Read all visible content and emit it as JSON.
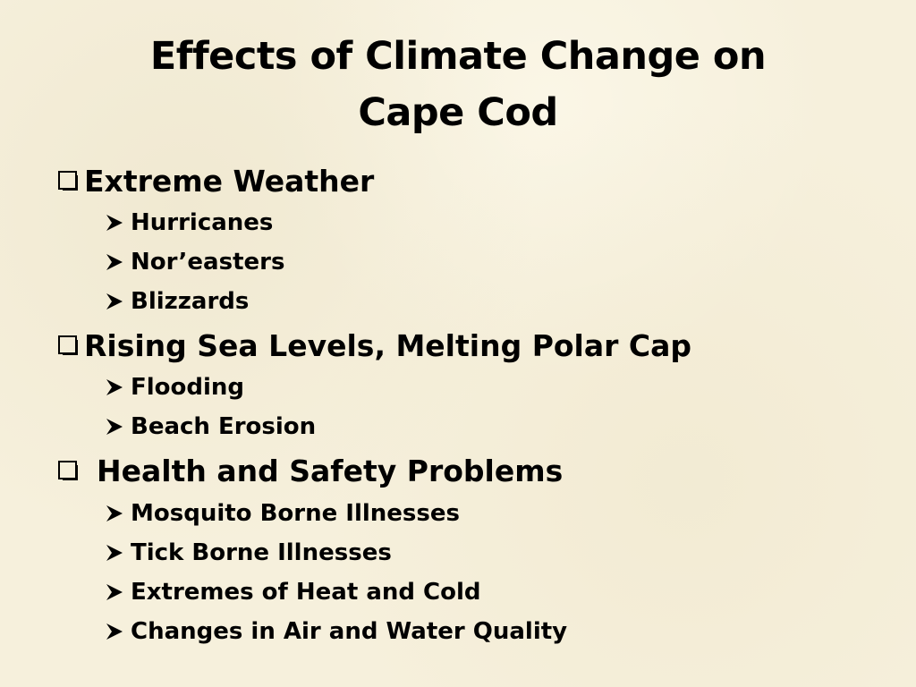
{
  "slide": {
    "title_line1": "Effects of Climate Change on",
    "title_line2": "Cape Cod",
    "sections": [
      {
        "label": "Extreme Weather",
        "icon": "checkbox-square-icon",
        "items": [
          "Hurricanes",
          "Nor’easters",
          "Blizzards"
        ]
      },
      {
        "label": "Rising Sea Levels, Melting Polar Cap",
        "icon": "checkbox-square-icon",
        "items": [
          "Flooding",
          "Beach Erosion"
        ]
      },
      {
        "label": "Health and Safety Problems",
        "icon": "checkbox-square-icon",
        "items": [
          "Mosquito Borne Illnesses",
          "Tick Borne Illnesses",
          "Extremes of Heat and Cold",
          "Changes in Air and Water Quality"
        ]
      }
    ],
    "sub_item_icon": "arrowhead-bullet-icon",
    "background_color": "#f6f0dc",
    "text_color": "#000000"
  }
}
